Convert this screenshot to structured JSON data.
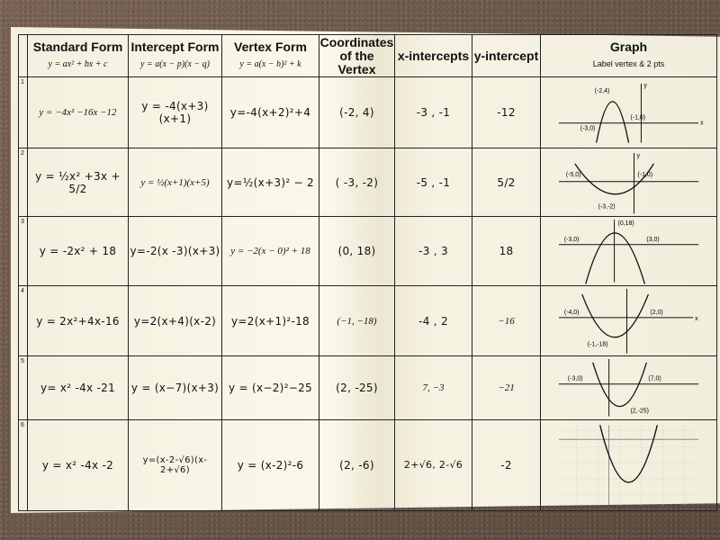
{
  "headers": [
    {
      "title": "Standard Form",
      "sub": "y = ax² + bx + c"
    },
    {
      "title": "Intercept Form",
      "sub": "y = a(x − p)(x − q)"
    },
    {
      "title": "Vertex Form",
      "sub": "y = a(x − h)² + k"
    },
    {
      "title": "Coordinates of the Vertex",
      "sub": ""
    },
    {
      "title": "x-intercepts",
      "sub": ""
    },
    {
      "title": "y-intercept",
      "sub": ""
    },
    {
      "title": "Graph",
      "sub": "Label vertex & 2 pts"
    }
  ],
  "rows": [
    {
      "n": "1",
      "standard": "y = −4x² −16x −12",
      "intercept": "y = -4(x+3)(x+1)",
      "vertex_form": "y=-4(x+2)²+4",
      "vertex": "(-2, 4)",
      "x_int": "-3 , -1",
      "y_int": "-12",
      "graph": {
        "labels": [
          "(-2,4)",
          "(-3,0)",
          "(-1,0)",
          "y",
          "x"
        ]
      }
    },
    {
      "n": "2",
      "standard": "y = ½x² +3x + 5/2",
      "intercept": "y = ½(x+1)(x+5)",
      "vertex_form": "y=½(x+3)² − 2",
      "vertex": "( -3, -2)",
      "x_int": "-5 , -1",
      "y_int": "5/2",
      "graph": {
        "labels": [
          "(-5,0)",
          "(-1,0)",
          "(-3,-2)",
          "y"
        ]
      }
    },
    {
      "n": "3",
      "standard": "y = -2x² + 18",
      "intercept": "y=-2(x -3)(x+3)",
      "vertex_form": "y = −2(x − 0)² + 18",
      "vertex": "(0, 18)",
      "x_int": "-3 , 3",
      "y_int": "18",
      "graph": {
        "labels": [
          "(0,18)",
          "(-3,0)",
          "(3,0)"
        ]
      }
    },
    {
      "n": "4",
      "standard": "y = 2x²+4x-16",
      "intercept": "y=2(x+4)(x-2)",
      "vertex_form": "y=2(x+1)²-18",
      "vertex": "(−1, −18)",
      "x_int": "-4 , 2",
      "y_int": "−16",
      "graph": {
        "labels": [
          "(-4,0)",
          "(2,0)",
          "(-1,-18)",
          "x"
        ]
      }
    },
    {
      "n": "5",
      "standard": "y= x² -4x -21",
      "intercept": "y = (x−7)(x+3)",
      "vertex_form": "y = (x−2)²−25",
      "vertex": "(2, -25)",
      "x_int": "7, −3",
      "y_int": "−21",
      "graph": {
        "labels": [
          "(-3,0)",
          "(7,0)",
          "(2,-25)"
        ]
      }
    },
    {
      "n": "6",
      "standard": "y = x² -4x -2",
      "intercept": "y=(x-2-√6)(x-2+√6)",
      "vertex_form": "y = (x-2)²-6",
      "vertex": "(2, -6)",
      "x_int": "2+√6, 2-√6",
      "y_int": "-2",
      "graph": {
        "labels": []
      }
    }
  ]
}
